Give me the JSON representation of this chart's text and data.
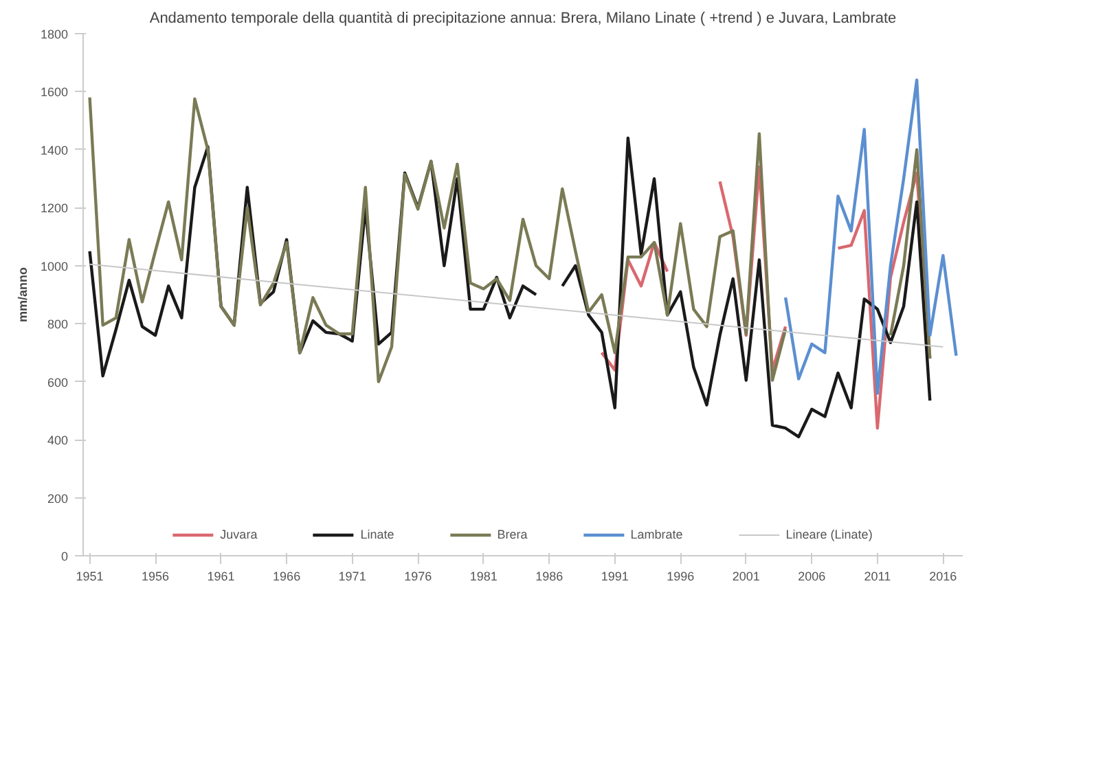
{
  "chart_data": {
    "type": "line",
    "title": "Andamento temporale della quantità di precipitazione annua: Brera, Milano Linate ( +trend ) e Juvara, Lambrate",
    "ylabel": "mm/anno",
    "xlim": [
      1950.5,
      2017.5
    ],
    "xticks": [
      1951,
      1956,
      1961,
      1966,
      1971,
      1976,
      1981,
      1986,
      1991,
      1996,
      2001,
      2006,
      2011,
      2016
    ],
    "ylim": [
      0,
      1800
    ],
    "yticks": [
      0,
      200,
      400,
      600,
      800,
      1000,
      1200,
      1400,
      1600,
      1800
    ],
    "grid": false,
    "legend": "bottom",
    "marker": "none",
    "line_style": "solid",
    "series": [
      {
        "name": "Juvara",
        "color": "#d9686f",
        "x": [
          1990,
          1991,
          1992,
          1993,
          1994,
          1995,
          1996,
          1997,
          1998,
          1999,
          2000,
          2001,
          2002,
          2003,
          2004,
          2005,
          2006,
          2007,
          2008,
          2009,
          2010,
          2011,
          2012,
          2013,
          2014,
          2015
        ],
        "values": [
          700,
          640,
          1020,
          930,
          1080,
          980,
          null,
          null,
          null,
          1290,
          1100,
          760,
          1340,
          640,
          790,
          null,
          null,
          null,
          1060,
          1070,
          1190,
          440,
          960,
          1150,
          1320,
          680
        ]
      },
      {
        "name": "Linate",
        "color": "#1a1a1a",
        "x": [
          1951,
          1952,
          1953,
          1954,
          1955,
          1956,
          1957,
          1958,
          1959,
          1960,
          1961,
          1962,
          1963,
          1964,
          1965,
          1966,
          1967,
          1968,
          1969,
          1970,
          1971,
          1972,
          1973,
          1974,
          1975,
          1976,
          1977,
          1978,
          1979,
          1980,
          1981,
          1982,
          1983,
          1984,
          1985,
          1986,
          1987,
          1988,
          1989,
          1990,
          1991,
          1992,
          1993,
          1994,
          1995,
          1996,
          1997,
          1998,
          1999,
          2000,
          2001,
          2002,
          2003,
          2004,
          2005,
          2006,
          2007,
          2008,
          2009,
          2010,
          2011,
          2012,
          2013,
          2014,
          2015
        ],
        "values": [
          1050,
          620,
          780,
          950,
          790,
          760,
          930,
          820,
          1270,
          1410,
          860,
          795,
          1270,
          870,
          910,
          1090,
          700,
          810,
          770,
          765,
          740,
          1200,
          730,
          770,
          1320,
          1200,
          1360,
          1000,
          1300,
          850,
          850,
          960,
          820,
          930,
          900,
          null,
          930,
          1000,
          830,
          770,
          510,
          1440,
          1040,
          1300,
          830,
          910,
          650,
          520,
          760,
          955,
          605,
          1020,
          450,
          440,
          410,
          505,
          480,
          630,
          510,
          885,
          850,
          735,
          860,
          1220,
          535
        ]
      },
      {
        "name": "Brera",
        "color": "#7a7a55",
        "x": [
          1951,
          1952,
          1953,
          1954,
          1955,
          1956,
          1957,
          1958,
          1959,
          1960,
          1961,
          1962,
          1963,
          1964,
          1965,
          1966,
          1967,
          1968,
          1969,
          1970,
          1971,
          1972,
          1973,
          1974,
          1975,
          1976,
          1977,
          1978,
          1979,
          1980,
          1981,
          1982,
          1983,
          1984,
          1985,
          1986,
          1987,
          1988,
          1989,
          1990,
          1991,
          1992,
          1993,
          1994,
          1995,
          1996,
          1997,
          1998,
          1999,
          2000,
          2001,
          2002,
          2003,
          2004,
          2005,
          2006,
          2007,
          2008,
          2009,
          2010,
          2011,
          2012,
          2013,
          2014,
          2015
        ],
        "values": [
          1580,
          795,
          820,
          1090,
          875,
          1050,
          1220,
          1020,
          1575,
          1400,
          860,
          795,
          1200,
          865,
          940,
          1080,
          700,
          890,
          795,
          765,
          765,
          1270,
          600,
          720,
          1315,
          1195,
          1360,
          1130,
          1350,
          940,
          920,
          955,
          880,
          1160,
          1000,
          955,
          1265,
          1050,
          840,
          900,
          700,
          1030,
          1030,
          1080,
          830,
          1145,
          850,
          790,
          1100,
          1120,
          765,
          1455,
          605,
          780,
          null,
          null,
          null,
          null,
          null,
          null,
          null,
          760,
          1000,
          1400,
          680
        ]
      },
      {
        "name": "Lambrate",
        "color": "#5b8fd0",
        "x": [
          2004,
          2005,
          2006,
          2007,
          2008,
          2009,
          2010,
          2011,
          2012,
          2013,
          2014,
          2015,
          2016,
          2017
        ],
        "values": [
          890,
          610,
          730,
          700,
          1240,
          1120,
          1470,
          560,
          1000,
          1300,
          1640,
          760,
          1035,
          690
        ]
      },
      {
        "name": "Lineare (Linate)",
        "color": "#c8c8c8",
        "x": [
          1951,
          2016
        ],
        "values": [
          1005,
          720
        ]
      }
    ]
  }
}
